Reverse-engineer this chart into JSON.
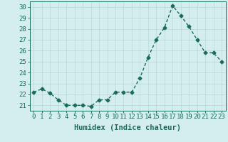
{
  "x": [
    0,
    1,
    2,
    3,
    4,
    5,
    6,
    7,
    8,
    9,
    10,
    11,
    12,
    13,
    14,
    15,
    16,
    17,
    18,
    19,
    20,
    21,
    22,
    23
  ],
  "y": [
    22.2,
    22.5,
    22.1,
    21.5,
    21.0,
    21.0,
    21.0,
    20.9,
    21.5,
    21.5,
    22.2,
    22.2,
    22.2,
    23.5,
    25.4,
    27.0,
    28.1,
    30.1,
    29.2,
    28.2,
    27.0,
    25.8,
    25.8,
    25.0
  ],
  "line_color": "#1a6b5a",
  "bg_color": "#d4eeee",
  "grid_color": "#b8d8d8",
  "xlabel": "Humidex (Indice chaleur)",
  "ylabel_ticks": [
    21,
    22,
    23,
    24,
    25,
    26,
    27,
    28,
    29,
    30
  ],
  "ylim": [
    20.5,
    30.5
  ],
  "xlim": [
    -0.5,
    23.5
  ],
  "marker": "D",
  "markersize": 2.5,
  "linewidth": 1.0,
  "xlabel_fontsize": 7.5,
  "tick_fontsize": 6.5,
  "tick_color": "#1a6b5a",
  "label_color": "#1a6b5a"
}
